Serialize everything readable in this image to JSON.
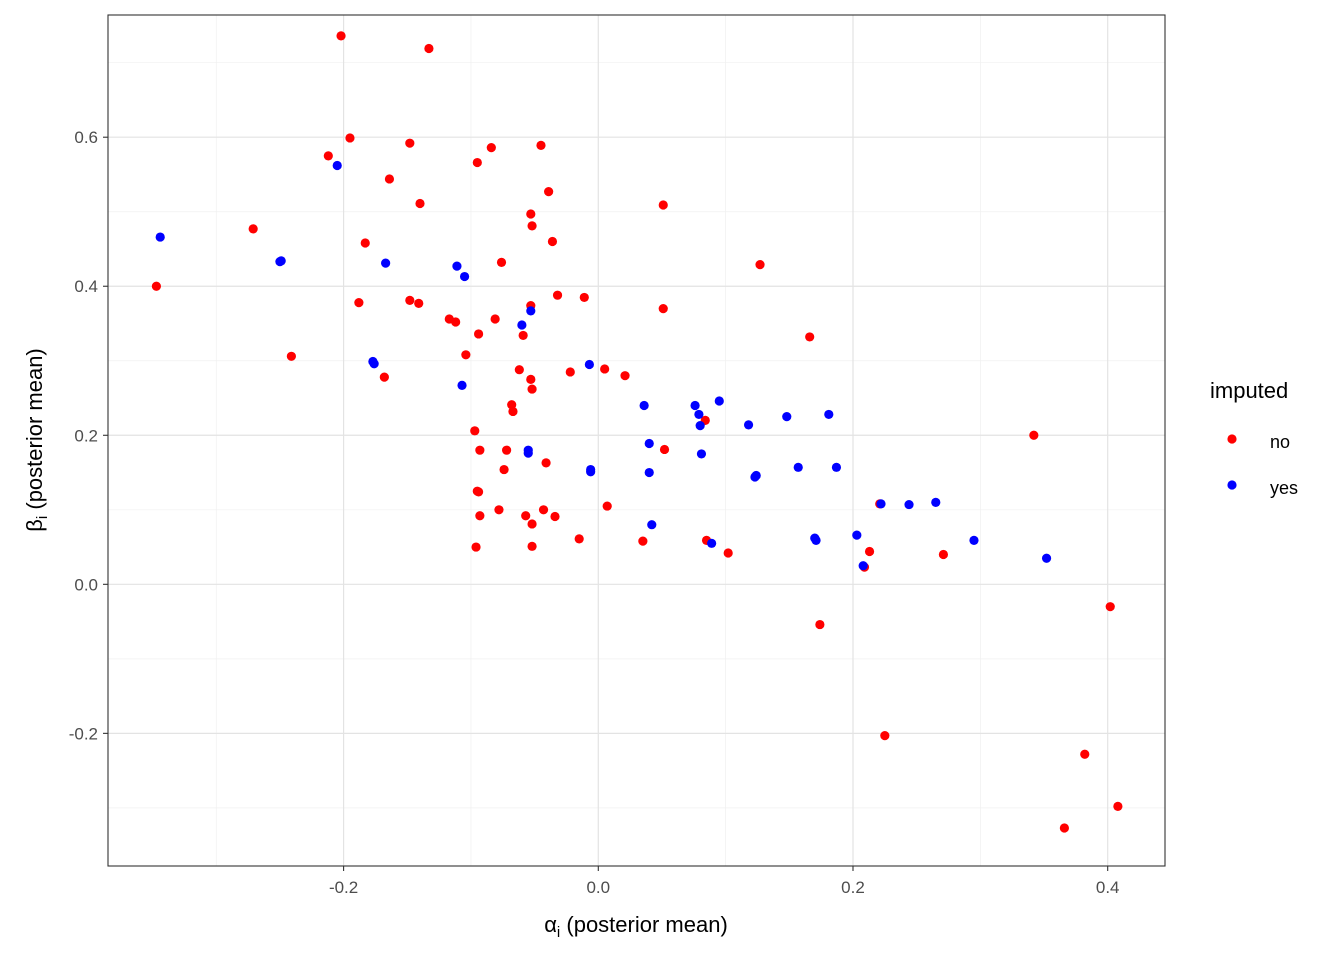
{
  "chart_data": {
    "type": "scatter",
    "title": "",
    "xlabel": {
      "symbol": "α",
      "subscript": "i",
      "text": " (posterior mean)"
    },
    "ylabel": {
      "symbol": "β",
      "subscript": "i",
      "text": " (posterior mean)"
    },
    "xlim": [
      -0.385,
      0.445
    ],
    "ylim": [
      -0.378,
      0.764
    ],
    "xticks": [
      -0.2,
      0.0,
      0.2,
      0.4
    ],
    "xtick_labels": [
      "-0.2",
      "0.0",
      "0.2",
      "0.4"
    ],
    "xminor": [
      -0.3,
      -0.1,
      0.1,
      0.3
    ],
    "yticks": [
      -0.2,
      0.0,
      0.2,
      0.4,
      0.6
    ],
    "ytick_labels": [
      "-0.2",
      "0.0",
      "0.2",
      "0.4",
      "0.6"
    ],
    "yminor": [
      -0.3,
      -0.1,
      0.1,
      0.3,
      0.5,
      0.7
    ],
    "grid": true,
    "legend": {
      "title": "imputed",
      "placement": "right",
      "entries": [
        {
          "label": "no",
          "color": "#ff0000"
        },
        {
          "label": "yes",
          "color": "#0000ff"
        }
      ]
    },
    "series": [
      {
        "name": "no",
        "color": "#ff0000",
        "points": [
          [
            -0.202,
            0.736
          ],
          [
            -0.133,
            0.719
          ],
          [
            -0.195,
            0.599
          ],
          [
            -0.212,
            0.575
          ],
          [
            -0.148,
            0.592
          ],
          [
            -0.084,
            0.586
          ],
          [
            -0.045,
            0.589
          ],
          [
            -0.095,
            0.566
          ],
          [
            -0.164,
            0.544
          ],
          [
            -0.14,
            0.511
          ],
          [
            -0.039,
            0.527
          ],
          [
            -0.053,
            0.497
          ],
          [
            -0.052,
            0.481
          ],
          [
            0.051,
            0.509
          ],
          [
            -0.271,
            0.477
          ],
          [
            -0.183,
            0.458
          ],
          [
            -0.036,
            0.46
          ],
          [
            -0.076,
            0.432
          ],
          [
            0.127,
            0.429
          ],
          [
            -0.347,
            0.4
          ],
          [
            -0.188,
            0.378
          ],
          [
            -0.148,
            0.381
          ],
          [
            -0.141,
            0.377
          ],
          [
            -0.032,
            0.388
          ],
          [
            -0.011,
            0.385
          ],
          [
            -0.053,
            0.374
          ],
          [
            0.051,
            0.37
          ],
          [
            -0.117,
            0.356
          ],
          [
            -0.112,
            0.352
          ],
          [
            -0.081,
            0.356
          ],
          [
            -0.094,
            0.336
          ],
          [
            -0.059,
            0.334
          ],
          [
            0.166,
            0.332
          ],
          [
            -0.241,
            0.306
          ],
          [
            -0.104,
            0.308
          ],
          [
            -0.062,
            0.288
          ],
          [
            0.005,
            0.289
          ],
          [
            -0.022,
            0.285
          ],
          [
            0.021,
            0.28
          ],
          [
            -0.168,
            0.278
          ],
          [
            -0.053,
            0.275
          ],
          [
            -0.052,
            0.262
          ],
          [
            -0.068,
            0.241
          ],
          [
            -0.067,
            0.232
          ],
          [
            -0.097,
            0.206
          ],
          [
            0.084,
            0.22
          ],
          [
            -0.093,
            0.18
          ],
          [
            -0.072,
            0.18
          ],
          [
            0.052,
            0.181
          ],
          [
            -0.041,
            0.163
          ],
          [
            -0.074,
            0.154
          ],
          [
            0.342,
            0.2
          ],
          [
            -0.095,
            0.125
          ],
          [
            -0.094,
            0.124
          ],
          [
            0.007,
            0.105
          ],
          [
            -0.078,
            0.1
          ],
          [
            -0.043,
            0.1
          ],
          [
            -0.093,
            0.092
          ],
          [
            -0.057,
            0.092
          ],
          [
            -0.034,
            0.091
          ],
          [
            -0.052,
            0.081
          ],
          [
            -0.015,
            0.061
          ],
          [
            0.035,
            0.058
          ],
          [
            0.085,
            0.059
          ],
          [
            0.221,
            0.108
          ],
          [
            -0.096,
            0.05
          ],
          [
            -0.052,
            0.051
          ],
          [
            0.102,
            0.042
          ],
          [
            0.213,
            0.044
          ],
          [
            0.271,
            0.04
          ],
          [
            0.209,
            0.023
          ],
          [
            0.402,
            -0.03
          ],
          [
            0.174,
            -0.054
          ],
          [
            0.225,
            -0.203
          ],
          [
            0.382,
            -0.228
          ],
          [
            0.408,
            -0.298
          ],
          [
            0.366,
            -0.327
          ]
        ]
      },
      {
        "name": "yes",
        "color": "#0000ff",
        "points": [
          [
            -0.205,
            0.562
          ],
          [
            -0.344,
            0.466
          ],
          [
            -0.25,
            0.433
          ],
          [
            -0.249,
            0.434
          ],
          [
            -0.167,
            0.431
          ],
          [
            -0.111,
            0.427
          ],
          [
            -0.105,
            0.413
          ],
          [
            -0.053,
            0.367
          ],
          [
            -0.06,
            0.348
          ],
          [
            -0.177,
            0.299
          ],
          [
            -0.176,
            0.296
          ],
          [
            -0.107,
            0.267
          ],
          [
            -0.007,
            0.295
          ],
          [
            0.036,
            0.24
          ],
          [
            0.076,
            0.24
          ],
          [
            0.079,
            0.228
          ],
          [
            0.095,
            0.246
          ],
          [
            0.08,
            0.213
          ],
          [
            0.118,
            0.214
          ],
          [
            0.148,
            0.225
          ],
          [
            0.181,
            0.228
          ],
          [
            0.04,
            0.189
          ],
          [
            0.081,
            0.175
          ],
          [
            -0.055,
            0.18
          ],
          [
            -0.055,
            0.176
          ],
          [
            -0.006,
            0.154
          ],
          [
            -0.006,
            0.151
          ],
          [
            0.04,
            0.15
          ],
          [
            0.157,
            0.157
          ],
          [
            0.187,
            0.157
          ],
          [
            0.124,
            0.146
          ],
          [
            0.123,
            0.144
          ],
          [
            0.244,
            0.107
          ],
          [
            0.265,
            0.11
          ],
          [
            0.222,
            0.108
          ],
          [
            0.042,
            0.08
          ],
          [
            0.203,
            0.066
          ],
          [
            0.17,
            0.062
          ],
          [
            0.171,
            0.059
          ],
          [
            0.295,
            0.059
          ],
          [
            0.089,
            0.055
          ],
          [
            0.352,
            0.035
          ],
          [
            0.208,
            0.025
          ]
        ]
      }
    ]
  }
}
